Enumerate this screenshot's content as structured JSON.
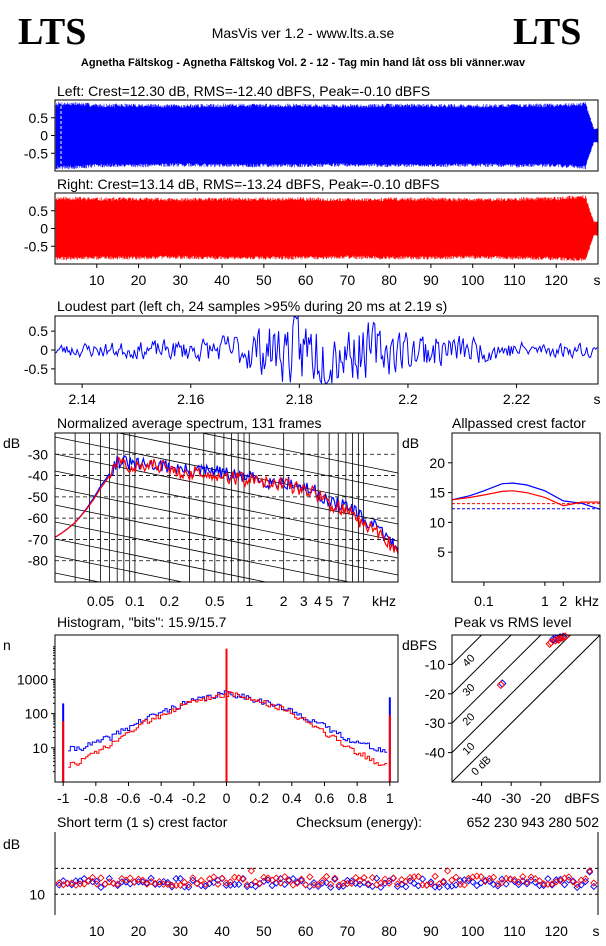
{
  "header": {
    "logo_left": "LTS",
    "logo_right": "LTS",
    "app_title": "MasVis ver 1.2 - www.lts.a.se",
    "file_name": "Agnetha Fältskog - Agnetha Fältskog Vol. 2 - 12 - Tag min hand låt oss bli vänner.wav"
  },
  "colors": {
    "left": "#0000ff",
    "right": "#ff0000",
    "reference": "#000000"
  },
  "chart_data": [
    {
      "id": "left_waveform",
      "type": "area",
      "title": "Left: Crest=12.30 dB, RMS=-12.40 dBFS, Peak=-0.10 dBFS",
      "ytick_labels": [
        "0.5",
        "0",
        "-0.5"
      ],
      "yticks": [
        0.5,
        0,
        -0.5
      ],
      "ylim": [
        -1,
        1
      ],
      "xlim": [
        0,
        130
      ],
      "x": [
        0,
        5,
        10,
        20,
        30,
        40,
        50,
        60,
        70,
        80,
        90,
        100,
        110,
        120,
        127,
        129
      ],
      "envelope": [
        0.95,
        0.95,
        0.9,
        0.9,
        0.88,
        0.9,
        0.9,
        0.9,
        0.88,
        0.9,
        0.9,
        0.88,
        0.9,
        0.9,
        0.95,
        0.2
      ],
      "series_color": "#0000ff"
    },
    {
      "id": "right_waveform",
      "type": "area",
      "title": "Right: Crest=13.14 dB, RMS=-13.24 dBFS, Peak=-0.10 dBFS",
      "ytick_labels": [
        "0.5",
        "0",
        "-0.5"
      ],
      "yticks": [
        0.5,
        0,
        -0.5
      ],
      "ylim": [
        -1,
        1
      ],
      "xlim": [
        0,
        130
      ],
      "xtick_labels": [
        "10",
        "20",
        "30",
        "40",
        "50",
        "60",
        "70",
        "80",
        "90",
        "100",
        "110",
        "120",
        "s"
      ],
      "xticks": [
        10,
        20,
        30,
        40,
        50,
        60,
        70,
        80,
        90,
        100,
        110,
        120
      ],
      "x": [
        0,
        5,
        10,
        20,
        30,
        40,
        50,
        60,
        70,
        80,
        90,
        100,
        110,
        120,
        127,
        129
      ],
      "envelope": [
        0.9,
        0.9,
        0.88,
        0.88,
        0.86,
        0.88,
        0.88,
        0.88,
        0.86,
        0.88,
        0.88,
        0.86,
        0.88,
        0.9,
        0.95,
        0.2
      ],
      "series_color": "#ff0000"
    },
    {
      "id": "loudest_part",
      "type": "line",
      "title": "Loudest part (left  ch, 24 samples >95% during 20 ms at 2.19 s)",
      "ytick_labels": [
        "0.5",
        "0",
        "-0.5"
      ],
      "yticks": [
        0.5,
        0,
        -0.5
      ],
      "ylim": [
        -0.9,
        0.9
      ],
      "xlim": [
        2.135,
        2.235
      ],
      "xtick_labels": [
        "2.14",
        "2.16",
        "2.18",
        "2.2",
        "2.22",
        "s"
      ],
      "xticks": [
        2.14,
        2.16,
        2.18,
        2.2,
        2.22
      ],
      "x": [
        2.135,
        2.15,
        2.165,
        2.175,
        2.18,
        2.185,
        2.19,
        2.2,
        2.21,
        2.22,
        2.235
      ],
      "amplitude": [
        0.15,
        0.2,
        0.3,
        0.65,
        0.9,
        0.85,
        0.7,
        0.5,
        0.35,
        0.2,
        0.15
      ],
      "series_color": "#0000ff"
    },
    {
      "id": "average_spectrum",
      "type": "line",
      "title": "Normalized average spectrum, 131 frames",
      "ylabel": "dB",
      "ytick_labels": [
        "-30",
        "-40",
        "-50",
        "-60",
        "-70",
        "-80"
      ],
      "yticks": [
        -30,
        -40,
        -50,
        -60,
        -70,
        -80
      ],
      "ylim": [
        -90,
        -20
      ],
      "xscale": "log",
      "xlim": [
        0.02,
        20
      ],
      "xtick_labels": [
        "0.05",
        "0.1",
        "0.2",
        "0.5",
        "1",
        "2",
        "3",
        "4",
        "5",
        "7",
        "kHz"
      ],
      "xticks": [
        0.05,
        0.1,
        0.2,
        0.5,
        1,
        2,
        3,
        4,
        5,
        7
      ],
      "x": [
        0.02,
        0.03,
        0.05,
        0.07,
        0.1,
        0.15,
        0.2,
        0.3,
        0.5,
        0.7,
        1,
        1.5,
        2,
        3,
        4,
        5,
        7,
        10,
        14,
        20
      ],
      "series": [
        {
          "name": "left",
          "values": [
            -69,
            -62,
            -45,
            -33,
            -35,
            -35,
            -36,
            -38,
            -38,
            -40,
            -41,
            -43,
            -43,
            -46,
            -48,
            -53,
            -54,
            -61,
            -66,
            -75
          ]
        },
        {
          "name": "right",
          "values": [
            -69,
            -62,
            -46,
            -34,
            -36,
            -35,
            -37,
            -39,
            -39,
            -41,
            -42,
            -44,
            -44,
            -47,
            -49,
            -54,
            -56,
            -63,
            -68,
            -76
          ]
        }
      ]
    },
    {
      "id": "allpassed_crest",
      "type": "line",
      "title": "Allpassed crest factor",
      "ylabel": "dB",
      "ytick_labels": [
        "20",
        "15",
        "10",
        "5"
      ],
      "yticks": [
        20,
        15,
        10,
        5
      ],
      "ylim": [
        0,
        25
      ],
      "xscale": "log",
      "xlim": [
        0.03,
        8
      ],
      "xtick_labels": [
        "0.1",
        "1",
        "2",
        "kHz"
      ],
      "xticks": [
        0.1,
        1,
        2
      ],
      "x": [
        0.03,
        0.06,
        0.1,
        0.2,
        0.3,
        0.5,
        1,
        2,
        4,
        8
      ],
      "series": [
        {
          "name": "left",
          "values": [
            13.8,
            14.5,
            15.3,
            16.5,
            16.6,
            16.3,
            15.3,
            13.6,
            13.2,
            12.2
          ]
        },
        {
          "name": "right",
          "values": [
            13.8,
            14.2,
            14.6,
            15.2,
            15.3,
            15.0,
            14.2,
            12.8,
            13.4,
            13.4
          ]
        }
      ],
      "reference_lines": [
        12.3,
        13.14
      ]
    },
    {
      "id": "histogram",
      "type": "line",
      "title": "Histogram, \"bits\": 15.9/15.7",
      "ylabel": "n",
      "ytick_labels": [
        "1000",
        "100",
        "10"
      ],
      "yticks": [
        1000,
        100,
        10
      ],
      "yscale": "log",
      "ylim": [
        1,
        20000
      ],
      "xlim": [
        -1.05,
        1.05
      ],
      "xtick_labels": [
        "-1",
        "-0.8",
        "-0.6",
        "-0.4",
        "-0.2",
        "0",
        "0.2",
        "0.4",
        "0.6",
        "0.8",
        "1"
      ],
      "xticks": [
        -1,
        -0.8,
        -0.6,
        -0.4,
        -0.2,
        0,
        0.2,
        0.4,
        0.6,
        0.8,
        1
      ],
      "x": [
        -1,
        -0.97,
        -0.9,
        -0.8,
        -0.7,
        -0.6,
        -0.5,
        -0.4,
        -0.3,
        -0.2,
        -0.1,
        0,
        0.1,
        0.2,
        0.3,
        0.4,
        0.5,
        0.6,
        0.7,
        0.8,
        0.9,
        0.97,
        1
      ],
      "series": [
        {
          "name": "left",
          "values": [
            200,
            9,
            10,
            14,
            22,
            40,
            70,
            110,
            170,
            240,
            320,
            400,
            320,
            240,
            170,
            110,
            70,
            40,
            22,
            14,
            10,
            8,
            300
          ]
        },
        {
          "name": "right",
          "values": [
            60,
            3,
            4,
            7,
            13,
            28,
            55,
            95,
            155,
            225,
            305,
            390,
            305,
            225,
            155,
            95,
            55,
            28,
            13,
            7,
            4,
            3,
            90
          ]
        }
      ],
      "center_peak": 8000
    },
    {
      "id": "peak_vs_rms",
      "type": "scatter",
      "title": "Peak vs RMS level",
      "ylabel": "dBFS",
      "xlabel": "dBFS",
      "ytick_labels": [
        "-10",
        "-20",
        "-30",
        "-40"
      ],
      "yticks": [
        -10,
        -20,
        -30,
        -40
      ],
      "ylim": [
        -50,
        0
      ],
      "xtick_labels": [
        "-40",
        "-30",
        "-20"
      ],
      "xticks": [
        -40,
        -30,
        -20
      ],
      "xlim": [
        -50,
        0
      ],
      "crest_line_labels": [
        "40",
        "30",
        "20",
        "10",
        "0 dB"
      ],
      "crest_lines": [
        40,
        30,
        20,
        10,
        0
      ],
      "series": [
        {
          "name": "left",
          "points": [
            [
              -33,
              -16.5
            ],
            [
              -15.8,
              -1.5
            ],
            [
              -14.8,
              -1.2
            ],
            [
              -13.5,
              -0.8
            ],
            [
              -12.5,
              -0.6
            ]
          ]
        },
        {
          "name": "right",
          "points": [
            [
              -33.5,
              -17
            ],
            [
              -16.5,
              -2.5
            ],
            [
              -15,
              -1.8
            ],
            [
              -14,
              -1.6
            ],
            [
              -13.8,
              -1.4
            ],
            [
              -12.8,
              -0.9
            ],
            [
              -11.8,
              -0.5
            ],
            [
              -17,
              -3
            ]
          ]
        }
      ]
    },
    {
      "id": "short_term_crest",
      "type": "scatter",
      "title": "Short term (1 s) crest factor",
      "checksum_label": "Checksum (energy):",
      "checksum_value": "652 230 943 280 502",
      "ylabel": "dB",
      "ytick_labels": [
        "10"
      ],
      "yticks": [
        10
      ],
      "ylim": [
        6,
        22
      ],
      "xlim": [
        0,
        130
      ],
      "xtick_labels": [
        "10",
        "20",
        "30",
        "40",
        "50",
        "60",
        "70",
        "80",
        "90",
        "100",
        "110",
        "120",
        "s"
      ],
      "xticks": [
        10,
        20,
        30,
        40,
        50,
        60,
        70,
        80,
        90,
        100,
        110,
        120
      ],
      "reference_lines": [
        15,
        10
      ],
      "left_mean": 12.2,
      "right_mean": 12.6
    }
  ]
}
